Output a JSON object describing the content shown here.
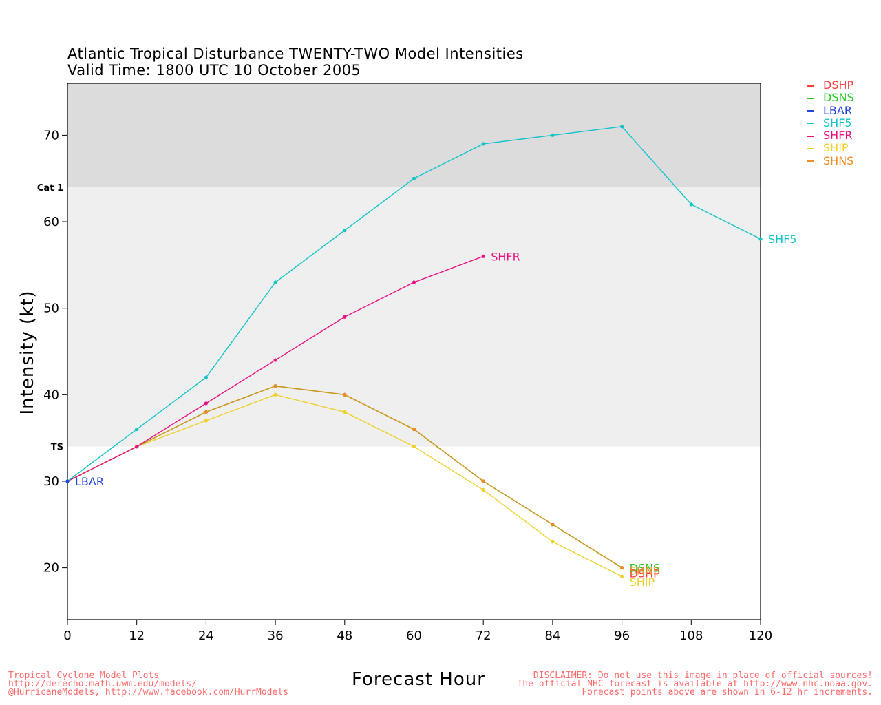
{
  "title_line1": "Atlantic Tropical Disturbance TWENTY-TWO Model Intensities",
  "title_line2": "Valid Time: 1800 UTC 10 October 2005",
  "chart_data": {
    "type": "line",
    "xlabel": "Forecast Hour",
    "ylabel": "Intensity (kt)",
    "xlim": [
      0,
      120
    ],
    "ylim": [
      14,
      76
    ],
    "xticks": [
      0,
      12,
      24,
      36,
      48,
      60,
      72,
      84,
      96,
      108,
      120
    ],
    "yticks": [
      20,
      30,
      40,
      50,
      60,
      70
    ],
    "bands": [
      {
        "from": 14,
        "to": 34,
        "color": "#ffffff"
      },
      {
        "from": 34,
        "to": 64,
        "color": "#efefef"
      },
      {
        "from": 64,
        "to": 76,
        "color": "#dcdcdc"
      }
    ],
    "threshold_labels": [
      {
        "label": "TS",
        "value": 34
      },
      {
        "label": "Cat 1",
        "value": 64
      }
    ],
    "series": [
      {
        "name": "DSHP",
        "color": "#ff3b3b",
        "end_label": "DSHP",
        "x": [
          0,
          12,
          24,
          36,
          48,
          60,
          72,
          84,
          96
        ],
        "values": [
          30,
          34,
          38,
          41,
          40,
          36,
          30,
          25,
          20
        ]
      },
      {
        "name": "DSNS",
        "color": "#22cc22",
        "end_label": "DSNS",
        "x": [
          0,
          12,
          24,
          36,
          48,
          60,
          72,
          84,
          96
        ],
        "values": [
          30,
          34,
          38,
          41,
          40,
          36,
          30,
          25,
          20
        ]
      },
      {
        "name": "LBAR",
        "color": "#2244dd",
        "end_label": "LBAR",
        "x": [
          0
        ],
        "values": [
          30
        ]
      },
      {
        "name": "SHF5",
        "color": "#11c4c8",
        "end_label": "SHF5",
        "x": [
          0,
          12,
          24,
          36,
          48,
          60,
          72,
          84,
          96,
          108,
          120
        ],
        "values": [
          30,
          36,
          42,
          53,
          59,
          65,
          69,
          70,
          71,
          62,
          58
        ]
      },
      {
        "name": "SHFR",
        "color": "#e8117f",
        "end_label": "SHFR",
        "x": [
          0,
          12,
          24,
          36,
          48,
          60,
          72
        ],
        "values": [
          30,
          34,
          39,
          44,
          49,
          53,
          56
        ]
      },
      {
        "name": "SHIP",
        "color": "#ecd12a",
        "end_label": "SHIP",
        "x": [
          0,
          12,
          24,
          36,
          48,
          60,
          72,
          84,
          96
        ],
        "values": [
          30,
          34,
          37,
          40,
          38,
          34,
          29,
          23,
          19
        ]
      },
      {
        "name": "SHNS",
        "color": "#f08a24",
        "end_label": "SHNS",
        "x": [
          0,
          12,
          24,
          36,
          48,
          60,
          72,
          84,
          96
        ],
        "values": [
          30,
          34,
          38,
          41,
          40,
          36,
          30,
          25,
          20
        ]
      }
    ],
    "legend": "top-right"
  },
  "footer_left": [
    "Tropical Cyclone Model Plots",
    "http://derecho.math.uwm.edu/models/",
    "@HurricaneModels, http://www.facebook.com/HurrModels"
  ],
  "footer_right": [
    "DISCLAIMER: Do not use this image in place of official sources!",
    "The official NHC forecast is available at http://www.nhc.noaa.gov.",
    "Forecast points above are shown in 6-12 hr increments."
  ]
}
